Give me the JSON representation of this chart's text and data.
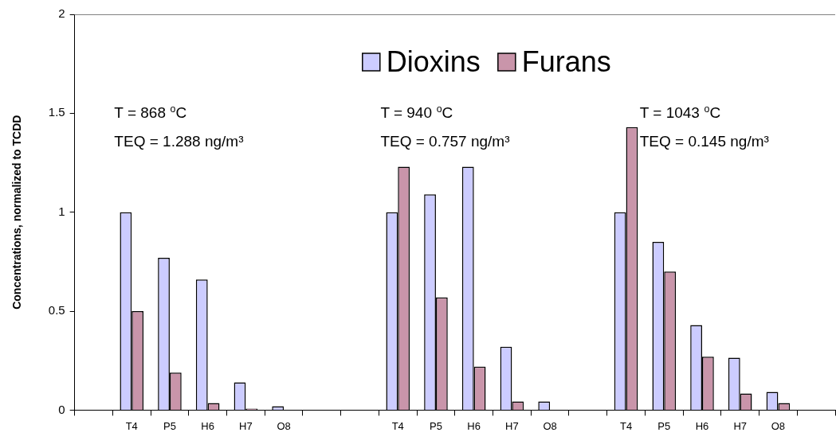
{
  "chart_data": {
    "type": "bar",
    "ylabel": "Concentrations, normalized to TCDD",
    "categories": [
      null,
      "T4",
      "P5",
      "H6",
      "H7",
      "O8",
      null,
      null,
      "T4",
      "P5",
      "H6",
      "H7",
      "O8",
      null,
      "T4",
      "P5",
      "H6",
      "H7",
      "O8",
      null
    ],
    "series": [
      {
        "name": "Dioxins",
        "color": "#ccccff",
        "values": [
          null,
          1.0,
          0.77,
          0.66,
          0.14,
          0.02,
          null,
          null,
          1.0,
          1.09,
          1.23,
          0.32,
          0.044,
          null,
          1.0,
          0.85,
          0.43,
          0.265,
          0.092,
          null
        ]
      },
      {
        "name": "Furans",
        "color": "#c995aa",
        "values": [
          null,
          0.5,
          0.19,
          0.036,
          0.008,
          0,
          null,
          null,
          1.23,
          0.57,
          0.22,
          0.044,
          0,
          null,
          1.43,
          0.7,
          0.27,
          0.084,
          0.036,
          null
        ]
      }
    ],
    "ylim": [
      0,
      2
    ],
    "yticks": [
      0,
      0.5,
      1,
      1.5,
      2
    ],
    "grid": false,
    "legend": "top",
    "annotations": [
      "T = 868 $^{o}$C",
      "TEQ = 1.288 ng/m³",
      "T = 940 $^{o}$C",
      "TEQ = 0.757 ng/m³",
      "T = 1043 $^{o}$C",
      "TEQ = 0.145 ng/m³"
    ]
  }
}
